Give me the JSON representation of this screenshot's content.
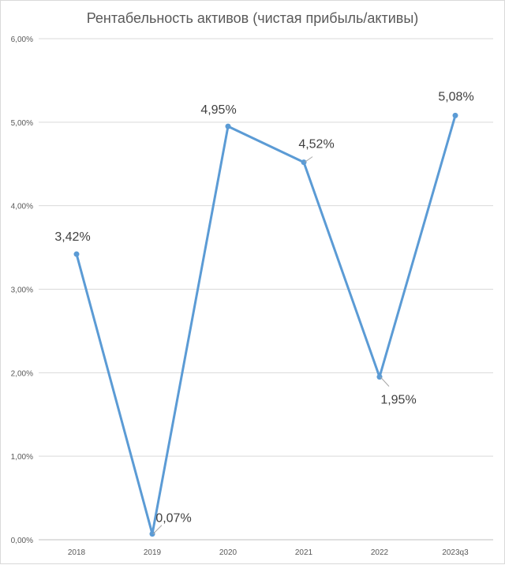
{
  "chart_data": {
    "type": "line",
    "title": "Рентабельность активов (чистая прибыль/активы)",
    "xlabel": "",
    "ylabel": "",
    "categories": [
      "2018",
      "2019",
      "2020",
      "2021",
      "2022",
      "2023q3"
    ],
    "series": [
      {
        "values": [
          3.42,
          0.07,
          4.95,
          4.52,
          1.95,
          5.08
        ],
        "labels": [
          "3,42%",
          "0,07%",
          "4,95%",
          "4,52%",
          "1,95%",
          "5,08%"
        ],
        "color": "#5B9BD5"
      }
    ],
    "ylim": [
      0,
      6
    ],
    "yticks": [
      "0,00%",
      "1,00%",
      "2,00%",
      "3,00%",
      "4,00%",
      "5,00%",
      "6,00%"
    ],
    "grid": true,
    "legend": "none"
  }
}
